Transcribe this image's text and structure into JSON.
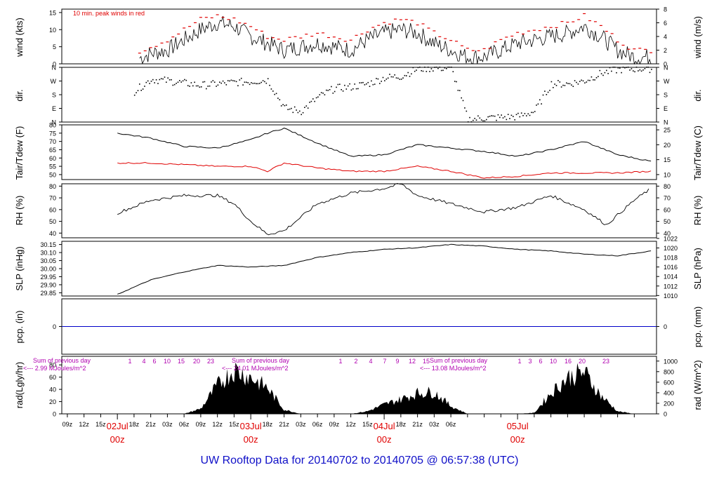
{
  "title": "UW Rooftop Data for 20140702  to  20140705 @ 06:57:38  (UTC)",
  "colors": {
    "trace": "#000000",
    "tdew": "#e00000",
    "gust": "#e00000",
    "pcp": "#0000c8",
    "sun": "#b000b0",
    "date": "#e00000",
    "title": "#1010c8"
  },
  "x_axis": {
    "hour_ticks": [
      "09z",
      "12z",
      "15z",
      "18z",
      "21z",
      "03z",
      "06z",
      "09z",
      "12z",
      "15z",
      "18z",
      "21z",
      "03z",
      "06z",
      "09z",
      "12z",
      "15z",
      "18z",
      "21z",
      "03z",
      "06z"
    ],
    "date_labels": [
      {
        "day": "02Jul",
        "time": "00z"
      },
      {
        "day": "03Jul",
        "time": "00z"
      },
      {
        "day": "04Jul",
        "time": "00z"
      },
      {
        "day": "05Jul",
        "time": "00z"
      }
    ]
  },
  "chart_data": [
    {
      "id": "wind",
      "type": "line",
      "ylabel_left": "wind (kts)",
      "ylabel_right": "wind (m/s)",
      "annotation": "10 min. peak winds in red",
      "yticks_left": [
        "0",
        "5",
        "10",
        "15"
      ],
      "ylim_left": [
        0,
        16
      ],
      "yticks_right": [
        "0",
        "2",
        "4",
        "6",
        "8"
      ],
      "ylim_right": [
        0,
        8
      ],
      "x_hours": [
        3,
        6,
        9,
        12,
        15,
        18,
        21,
        24,
        27,
        30,
        33,
        36,
        39,
        42,
        45,
        48,
        51,
        54,
        57,
        60,
        63,
        66,
        69,
        72,
        75,
        78,
        81,
        84,
        87,
        90,
        93
      ],
      "values": [
        1,
        3,
        4,
        7,
        10,
        12,
        11,
        8,
        6,
        4,
        5,
        6,
        5,
        4,
        7,
        9,
        10,
        9,
        6,
        4,
        2,
        2,
        4,
        6,
        7,
        8,
        9,
        11,
        8,
        4,
        2
      ],
      "gust": [
        3,
        5,
        7,
        10,
        13,
        14,
        13,
        11,
        8,
        7,
        8,
        9,
        8,
        7,
        10,
        12,
        13,
        12,
        9,
        7,
        4,
        4,
        7,
        9,
        10,
        11,
        12,
        14,
        11,
        7,
        4
      ]
    },
    {
      "id": "dir",
      "type": "scatter",
      "ylabel_left": "dir.",
      "ylabel_right": "dir.",
      "yticks": [
        "N",
        "E",
        "S",
        "W",
        "N"
      ],
      "ylim": [
        0,
        360
      ],
      "x_hours": [
        3,
        6,
        9,
        12,
        15,
        18,
        21,
        24,
        27,
        30,
        33,
        36,
        39,
        42,
        45,
        48,
        51,
        54,
        57,
        60,
        63,
        66,
        69,
        72,
        75,
        78,
        81,
        84,
        87,
        90,
        93
      ],
      "values": [
        200,
        280,
        270,
        255,
        240,
        250,
        260,
        265,
        275,
        90,
        70,
        160,
        220,
        230,
        250,
        290,
        300,
        350,
        355,
        355,
        15,
        25,
        30,
        35,
        70,
        250,
        250,
        270,
        320,
        345,
        350
      ]
    },
    {
      "id": "temp",
      "type": "line",
      "ylabel_left": "Tair/Tdew (F)",
      "ylabel_right": "Tair/Tdew (C)",
      "yticks_left": [
        "50",
        "55",
        "60",
        "65",
        "70",
        "75",
        "80"
      ],
      "ylim_left": [
        47,
        80
      ],
      "yticks_right": [
        "10",
        "15",
        "20",
        "25"
      ],
      "ylim_right": [
        8.33,
        26.67
      ],
      "x_hours": [
        0,
        6,
        12,
        18,
        24,
        27,
        30,
        36,
        42,
        48,
        54,
        60,
        66,
        72,
        78,
        84,
        90,
        96
      ],
      "tair": [
        75,
        72,
        67,
        66,
        71,
        75,
        78,
        69,
        61,
        62,
        68,
        66,
        64,
        61,
        65,
        70,
        62,
        58
      ],
      "tdew": [
        57,
        57,
        56,
        55,
        55,
        52,
        57,
        54,
        52,
        52,
        55,
        52,
        48,
        49,
        51,
        51,
        51,
        52
      ]
    },
    {
      "id": "rh",
      "type": "line",
      "ylabel_left": "RH (%)",
      "ylabel_right": "RH (%)",
      "yticks": [
        "40",
        "50",
        "60",
        "70",
        "80"
      ],
      "ylim": [
        36,
        82
      ],
      "x_hours": [
        0,
        6,
        12,
        18,
        21,
        24,
        27,
        30,
        36,
        42,
        48,
        51,
        54,
        60,
        66,
        72,
        78,
        84,
        88,
        93,
        96
      ],
      "values": [
        57,
        68,
        72,
        72,
        65,
        50,
        39,
        42,
        65,
        74,
        78,
        82,
        72,
        65,
        58,
        62,
        72,
        60,
        47,
        68,
        78
      ]
    },
    {
      "id": "slp",
      "type": "line",
      "ylabel_left": "SLP (inHg)",
      "ylabel_right": "SLP (hPa)",
      "yticks_left": [
        "29.85",
        "29.90",
        "29.95",
        "30.00",
        "30.05",
        "30.10",
        "30.15"
      ],
      "ylim_left": [
        29.83,
        30.17
      ],
      "yticks_right": [
        "1010",
        "1012",
        "1014",
        "1016",
        "1018",
        "1020",
        "1022"
      ],
      "ylim_right": [
        1009.9,
        1021.4
      ],
      "x_hours": [
        0,
        6,
        12,
        18,
        24,
        30,
        36,
        42,
        48,
        54,
        60,
        66,
        72,
        78,
        84,
        90,
        96
      ],
      "values": [
        29.84,
        29.93,
        29.98,
        30.02,
        30.01,
        30.02,
        30.07,
        30.1,
        30.12,
        30.13,
        30.15,
        30.14,
        30.12,
        30.11,
        30.09,
        30.08,
        30.11
      ]
    },
    {
      "id": "pcp",
      "type": "line",
      "ylabel_left": "pcp. (in)",
      "ylabel_right": "pcp. (mm)",
      "yticks_left": [
        "0"
      ],
      "yticks_right": [
        "0"
      ],
      "values": [
        0
      ]
    },
    {
      "id": "rad",
      "type": "area",
      "ylabel_left": "rad(Lgly/hr)",
      "ylabel_right": "rad (W/m^2)",
      "yticks_left": [
        "0",
        "20",
        "40",
        "60",
        "80"
      ],
      "ylim_left": [
        0,
        94
      ],
      "yticks_right": [
        "0",
        "200",
        "400",
        "600",
        "800",
        "1000"
      ],
      "ylim_right": [
        0,
        1090
      ],
      "sun_hours": [
        "1",
        "4",
        "6",
        "10",
        "15",
        "20",
        "23",
        "1",
        "2",
        "4",
        "7",
        "9",
        "12",
        "15",
        "1",
        "3",
        "6",
        "10",
        "16",
        "20",
        "23"
      ],
      "sum_label": "Sum of previous day",
      "energy": [
        "<--- 2.99 MJoules/m^2",
        "<--- 24.01 MJoules/m^2",
        "<--- 13.08 MJoules/m^2"
      ],
      "x_hours": [
        12,
        15,
        18,
        21,
        24,
        27,
        30,
        33,
        36,
        39,
        42,
        45,
        48,
        51,
        54,
        57,
        60,
        63,
        66,
        69,
        72,
        75,
        78,
        81,
        84,
        87,
        90,
        93
      ],
      "values": [
        0,
        10,
        55,
        85,
        70,
        50,
        8,
        0,
        0,
        0,
        0,
        5,
        18,
        28,
        40,
        42,
        15,
        0,
        0,
        0,
        0,
        2,
        40,
        70,
        80,
        35,
        5,
        0
      ]
    }
  ]
}
